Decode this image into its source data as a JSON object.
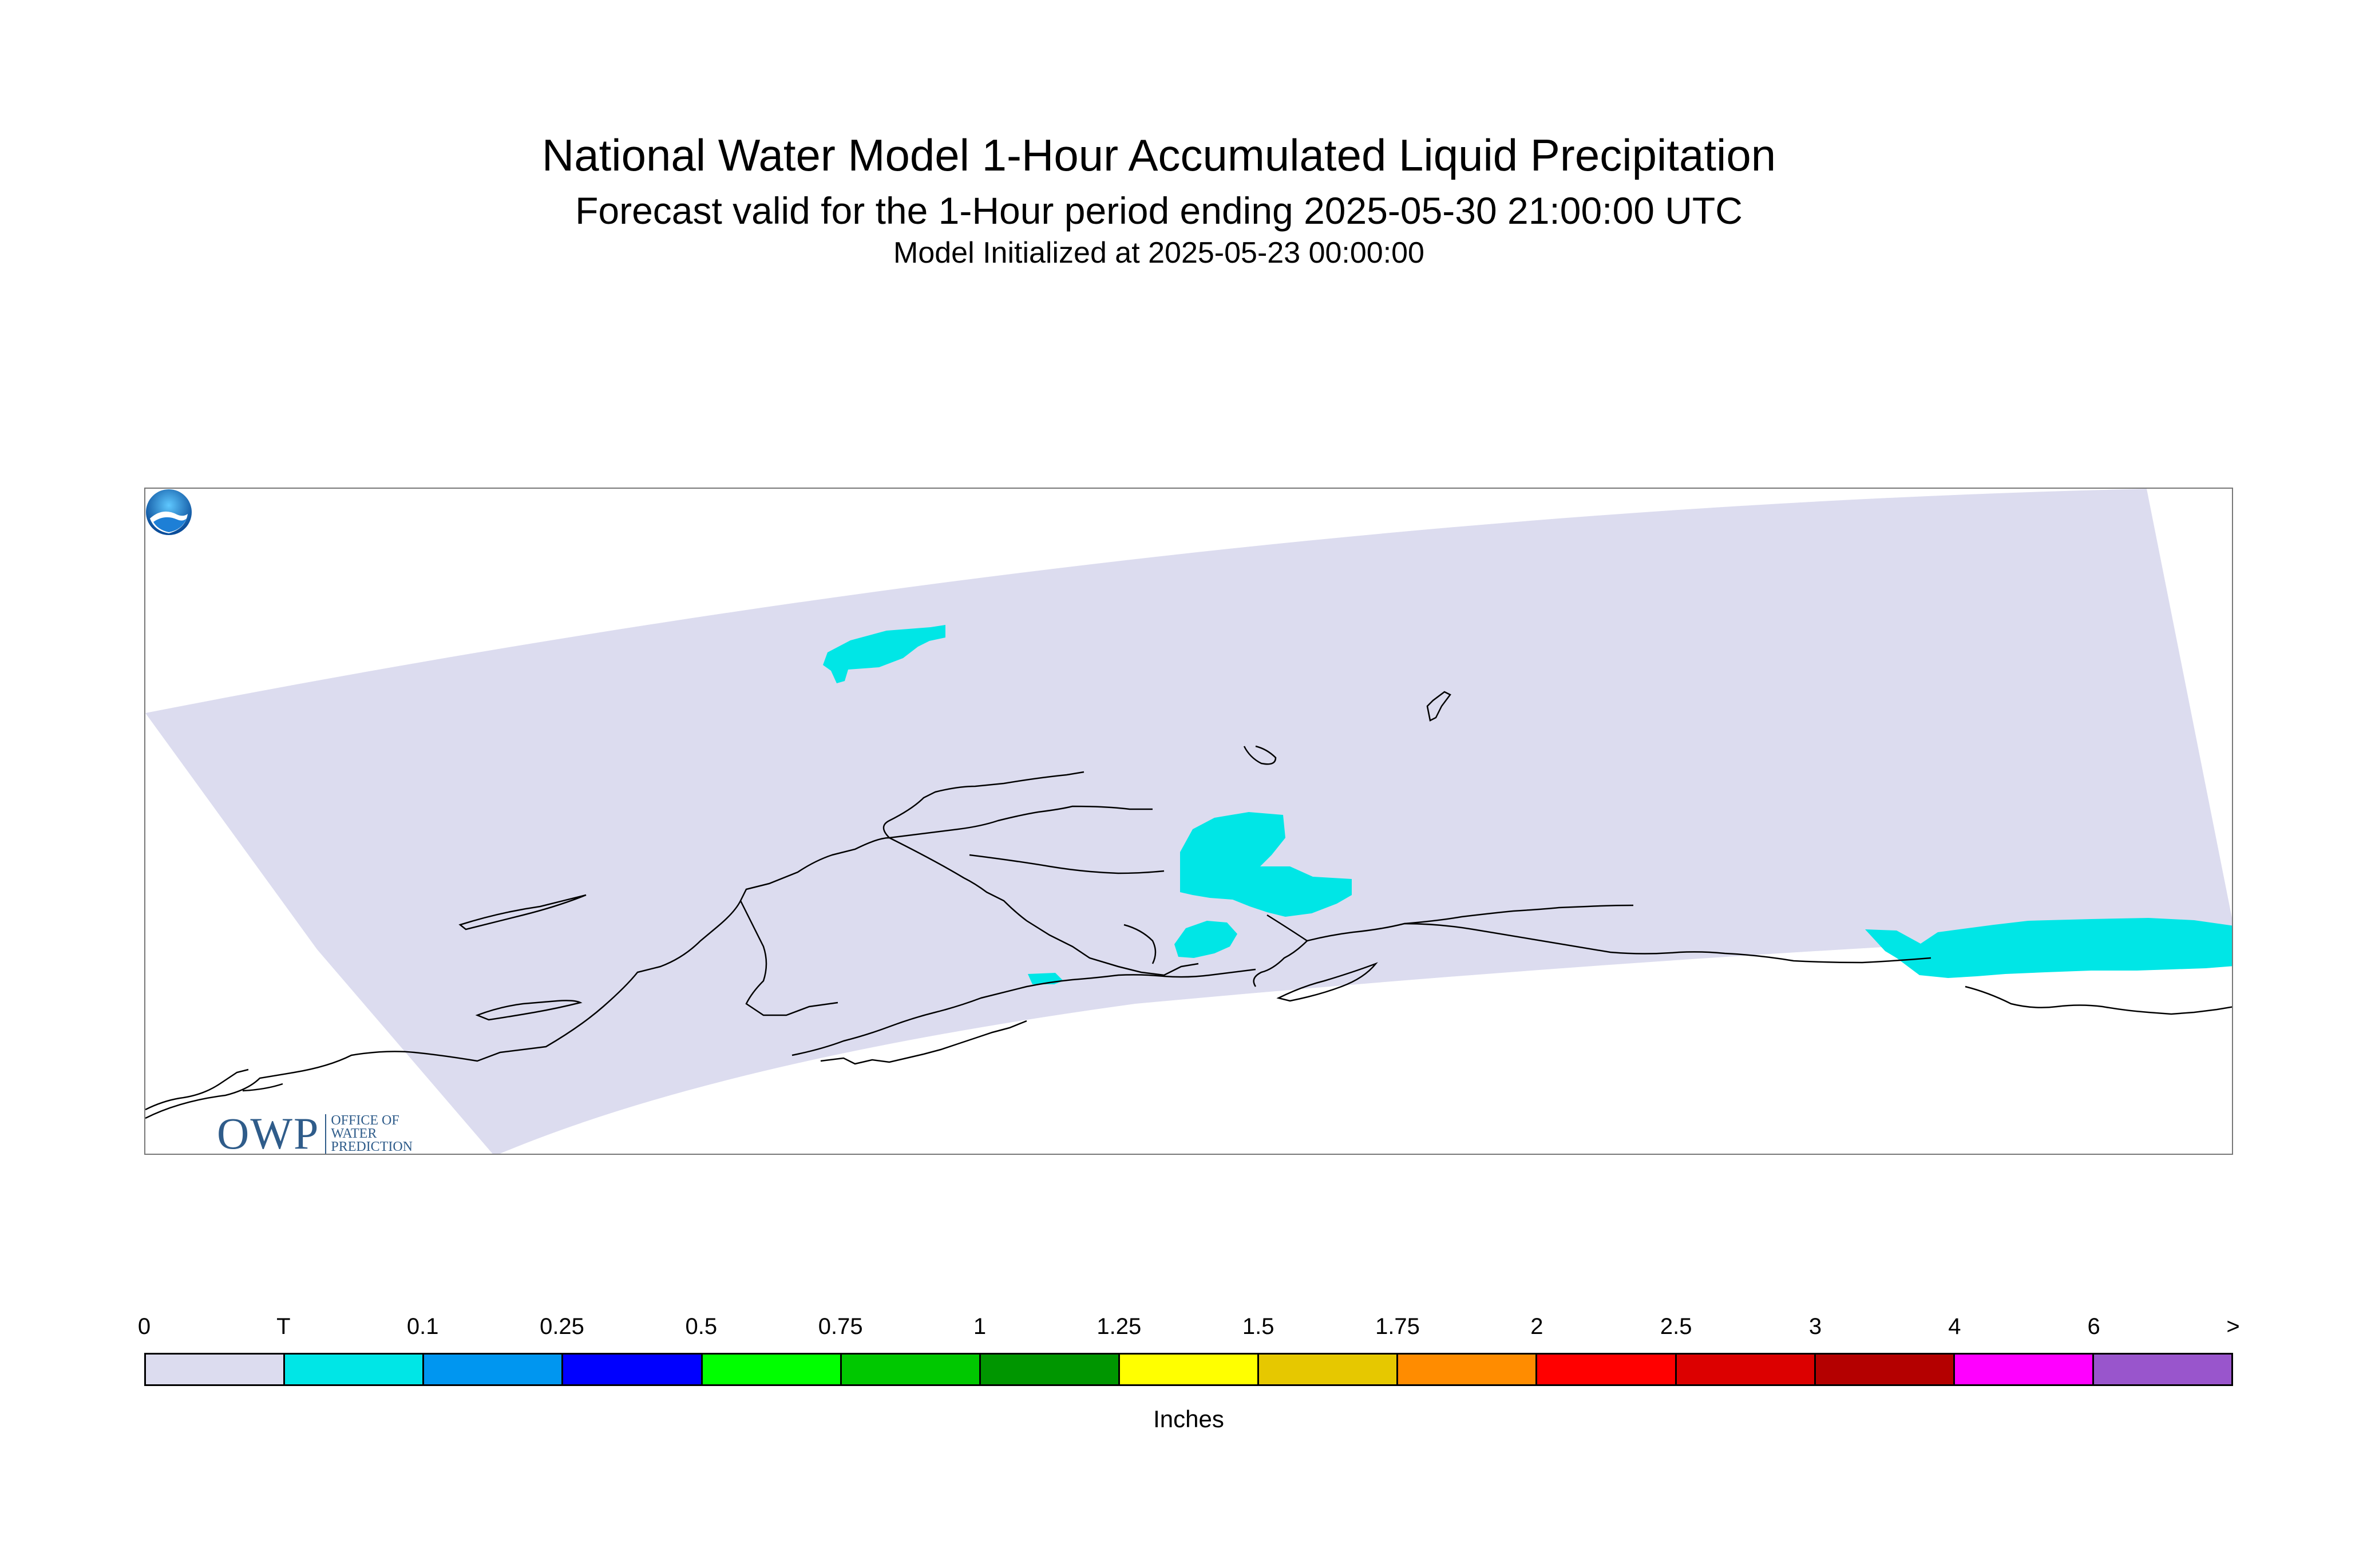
{
  "header": {
    "title": "National Water Model 1-Hour Accumulated Liquid Precipitation",
    "subtitle": "Forecast valid for the 1-Hour period ending 2025-05-30 21:00:00 UTC",
    "init_line": "Model Initialized at 2025-05-23 00:00:00"
  },
  "map": {
    "region": "Alaska",
    "domain_fill_color": "#dcdcef",
    "coastline_color": "#000000",
    "precip_color": "#00e6e6",
    "logos": {
      "owp_main": "OWP",
      "owp_sub": [
        "OFFICE OF",
        "WATER",
        "PREDICTION"
      ],
      "noaa_icon": "noaa-logo-icon"
    }
  },
  "legend": {
    "tick_labels": [
      "0",
      "T",
      "0.1",
      "0.25",
      "0.5",
      "0.75",
      "1",
      "1.25",
      "1.5",
      "1.75",
      "2",
      "2.5",
      "3",
      "4",
      "6",
      ">"
    ],
    "colors": [
      "#dcdcef",
      "#00e6e6",
      "#0096f0",
      "#0000ff",
      "#00ff00",
      "#00c800",
      "#009600",
      "#ffff00",
      "#e6c800",
      "#ff8c00",
      "#ff0000",
      "#dc0000",
      "#b40000",
      "#ff00ff",
      "#9955cc"
    ],
    "units": "Inches"
  }
}
